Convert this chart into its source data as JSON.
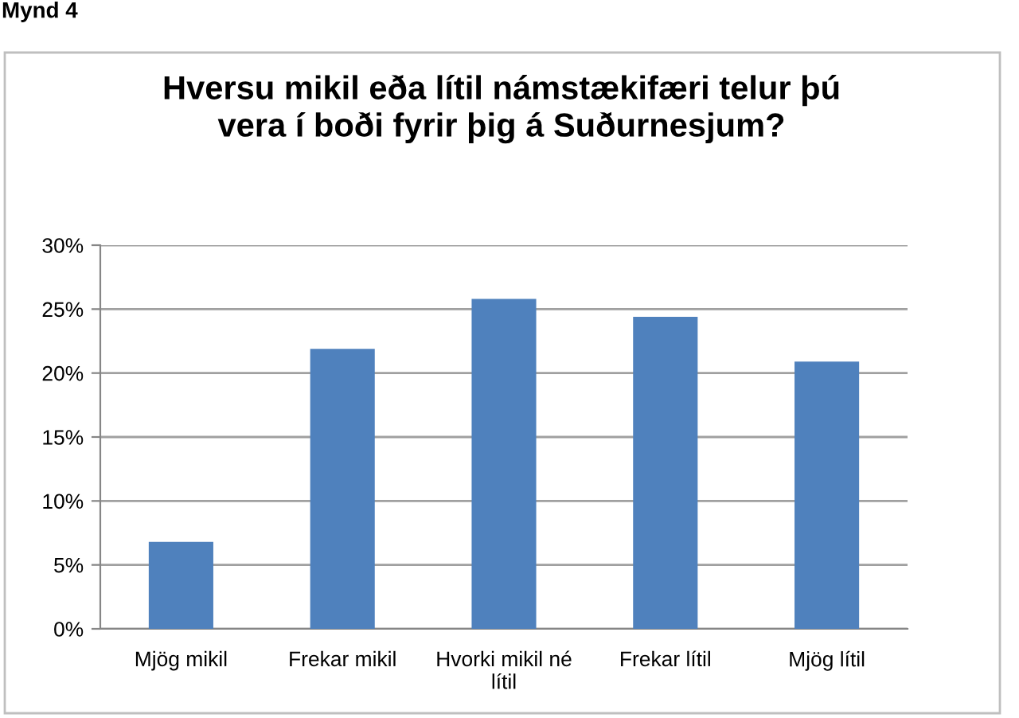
{
  "chart_data": {
    "type": "bar",
    "title": "Hversu mikil eða lítil námstækifæri telur þú vera í boði fyrir þig á Suðurnesjum?",
    "annotations": [
      "Mynd 4"
    ],
    "categories": [
      "Mjög mikil",
      "Frekar mikil",
      "Hvorki mikil né lítil",
      "Frekar lítil",
      "Mjög lítil"
    ],
    "values": [
      6.8,
      21.9,
      25.8,
      24.4,
      20.9
    ],
    "color": "#4f81bd",
    "ylim": [
      0,
      30
    ],
    "yticks": [
      {
        "value": 0,
        "label": "0%"
      },
      {
        "value": 5,
        "label": "5%"
      },
      {
        "value": 10,
        "label": "10%"
      },
      {
        "value": 15,
        "label": "15%"
      },
      {
        "value": 20,
        "label": "20%"
      },
      {
        "value": 25,
        "label": "25%"
      },
      {
        "value": 30,
        "label": "30%"
      }
    ],
    "grid": "y"
  }
}
